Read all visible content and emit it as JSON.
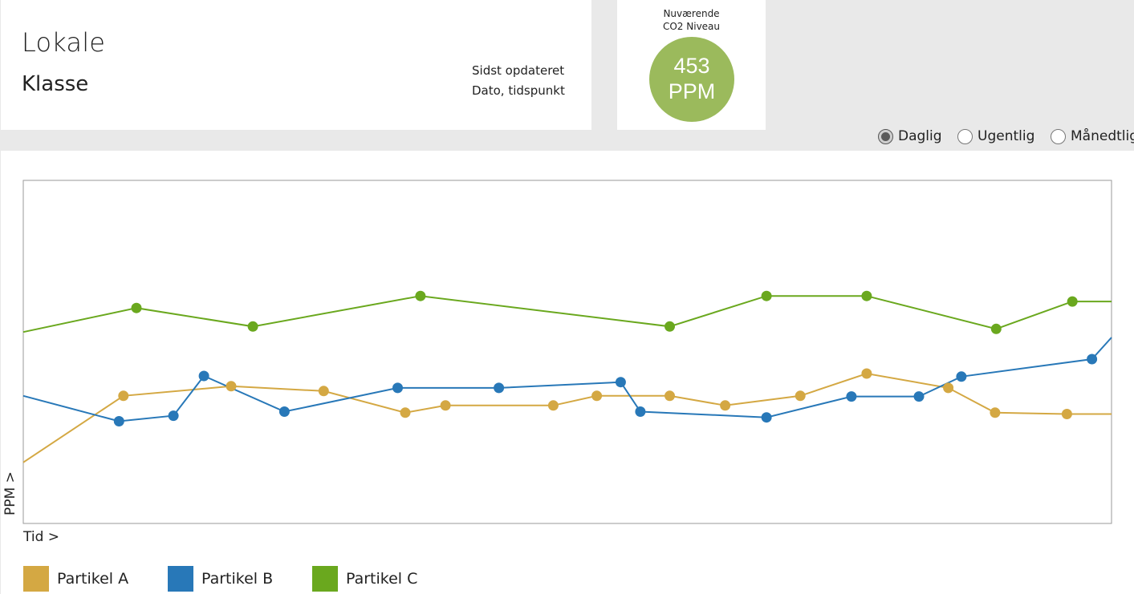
{
  "header": {
    "title": "Lokale",
    "subtitle": "Klasse",
    "updated_label": "Sidst opdateret",
    "updated_value": "Dato, tidspunkt"
  },
  "co2": {
    "label_line1": "Nuværende",
    "label_line2": "CO2 Niveau",
    "value": "453",
    "unit": "PPM",
    "color": "#9bba5c"
  },
  "period": {
    "options": [
      "Daglig",
      "Ugentlig",
      "Månedtlig"
    ],
    "selected": "Daglig"
  },
  "chart_data": {
    "type": "line",
    "title": "",
    "xlabel": "Tid >",
    "ylabel": "PPM >",
    "xlim": [
      0,
      1
    ],
    "ylim": [
      0,
      1
    ],
    "grid": false,
    "legend_position": "bottom-left",
    "series": [
      {
        "name": "Partikel A",
        "color": "#d4a843",
        "x": [
          0.0,
          0.092,
          0.191,
          0.276,
          0.351,
          0.388,
          0.487,
          0.527,
          0.594,
          0.645,
          0.714,
          0.775,
          0.85,
          0.893,
          0.959,
          1.0
        ],
        "y": [
          0.178,
          0.372,
          0.4,
          0.386,
          0.323,
          0.344,
          0.344,
          0.372,
          0.372,
          0.344,
          0.372,
          0.437,
          0.395,
          0.323,
          0.319,
          0.319
        ],
        "markers": [
          false,
          true,
          true,
          true,
          true,
          true,
          true,
          true,
          true,
          true,
          true,
          true,
          true,
          true,
          true,
          false
        ]
      },
      {
        "name": "Partikel B",
        "color": "#2878b8",
        "x": [
          0.0,
          0.088,
          0.138,
          0.166,
          0.24,
          0.344,
          0.437,
          0.549,
          0.567,
          0.683,
          0.761,
          0.823,
          0.862,
          0.982,
          1.0
        ],
        "y": [
          0.372,
          0.298,
          0.314,
          0.43,
          0.326,
          0.395,
          0.395,
          0.412,
          0.326,
          0.309,
          0.37,
          0.37,
          0.428,
          0.479,
          0.542
        ],
        "markers": [
          false,
          true,
          true,
          true,
          true,
          true,
          true,
          true,
          true,
          true,
          true,
          true,
          true,
          true,
          false
        ]
      },
      {
        "name": "Partikel C",
        "color": "#6aa81e",
        "x": [
          0.0,
          0.104,
          0.211,
          0.365,
          0.594,
          0.683,
          0.775,
          0.894,
          0.964,
          1.0
        ],
        "y": [
          0.558,
          0.628,
          0.574,
          0.663,
          0.574,
          0.663,
          0.663,
          0.567,
          0.647,
          0.647
        ],
        "markers": [
          false,
          true,
          true,
          true,
          true,
          true,
          true,
          true,
          true,
          false
        ]
      }
    ]
  }
}
